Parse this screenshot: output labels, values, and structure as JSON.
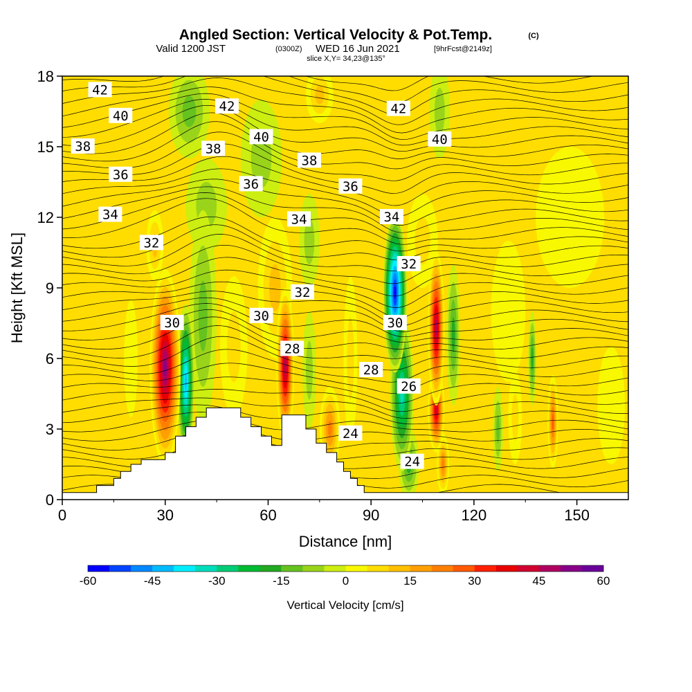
{
  "title": {
    "main": "Angled Section: Vertical Velocity & Pot.Temp.",
    "main_tag": "(C)",
    "valid_prefix": "Valid 1200 JST",
    "valid_zulu": "(0300Z)",
    "valid_date": "WED 16 Jun 2021",
    "forecast_tag": "[9hrFcst@2149z]",
    "slice": "slice X,Y= 34,23@135°"
  },
  "chart_data": {
    "type": "heatmap",
    "xlabel": "Distance [nm]",
    "ylabel": "Height [Kft MSL]",
    "xlim": [
      0,
      165
    ],
    "ylim": [
      0,
      18
    ],
    "x_ticks": [
      "0",
      "30",
      "60",
      "90",
      "120",
      "150"
    ],
    "x_tick_values": [
      0,
      30,
      60,
      90,
      120,
      150
    ],
    "y_ticks": [
      "0",
      "3",
      "6",
      "9",
      "12",
      "15",
      "18"
    ],
    "y_tick_values": [
      0,
      3,
      6,
      9,
      12,
      15,
      18
    ],
    "colorbar": {
      "label": "Vertical Velocity [cm/s]",
      "range": [
        -60,
        60
      ],
      "step": 5,
      "tick_labels": [
        "-60",
        "-45",
        "-30",
        "-15",
        "0",
        "15",
        "30",
        "45",
        "60"
      ],
      "tick_values": [
        -60,
        -45,
        -30,
        -15,
        0,
        15,
        30,
        45,
        60
      ],
      "colors": [
        "#0000ff",
        "#0044ff",
        "#0088ff",
        "#00bbff",
        "#00eeff",
        "#00ddbb",
        "#00cc77",
        "#00bb33",
        "#22aa22",
        "#66c21f",
        "#99d41a",
        "#ccee11",
        "#f8f800",
        "#ffdd00",
        "#ffc000",
        "#ffa000",
        "#ff8000",
        "#ff5a00",
        "#ff2000",
        "#e80000",
        "#d00030",
        "#b00060",
        "#880088",
        "#6a0099"
      ]
    },
    "terrain": [
      [
        0,
        0.3
      ],
      [
        10,
        0.3
      ],
      [
        10,
        0.6
      ],
      [
        15,
        0.6
      ],
      [
        15,
        0.9
      ],
      [
        17,
        0.9
      ],
      [
        17,
        1.2
      ],
      [
        20,
        1.2
      ],
      [
        20,
        1.5
      ],
      [
        23,
        1.5
      ],
      [
        23,
        1.7
      ],
      [
        30,
        1.7
      ],
      [
        30,
        2.0
      ],
      [
        33,
        2.0
      ],
      [
        33,
        2.7
      ],
      [
        36,
        2.7
      ],
      [
        36,
        3.1
      ],
      [
        39,
        3.1
      ],
      [
        39,
        3.5
      ],
      [
        42,
        3.5
      ],
      [
        42,
        3.9
      ],
      [
        52,
        3.9
      ],
      [
        52,
        3.5
      ],
      [
        55,
        3.5
      ],
      [
        55,
        3.1
      ],
      [
        58,
        3.1
      ],
      [
        58,
        2.7
      ],
      [
        61,
        2.7
      ],
      [
        61,
        2.3
      ],
      [
        64,
        2.3
      ],
      [
        64,
        3.6
      ],
      [
        71,
        3.6
      ],
      [
        71,
        3.0
      ],
      [
        74,
        3.0
      ],
      [
        74,
        2.4
      ],
      [
        77,
        2.4
      ],
      [
        77,
        2.0
      ],
      [
        80,
        2.0
      ],
      [
        80,
        1.6
      ],
      [
        82,
        1.6
      ],
      [
        82,
        1.2
      ],
      [
        84,
        1.2
      ],
      [
        84,
        0.9
      ],
      [
        86,
        0.9
      ],
      [
        86,
        0.6
      ],
      [
        88,
        0.6
      ],
      [
        88,
        0.3
      ],
      [
        165,
        0.3
      ]
    ],
    "vertical_velocity_cells": [
      {
        "x": 30,
        "y": 5.6,
        "rx": 4.5,
        "ry": 4.2,
        "w": 58
      },
      {
        "x": 36,
        "y": 5.0,
        "rx": 2.5,
        "ry": 3.3,
        "w": -45
      },
      {
        "x": 41,
        "y": 7.8,
        "rx": 4.0,
        "ry": 4.5,
        "w": -18
      },
      {
        "x": 27,
        "y": 10.8,
        "rx": 2.5,
        "ry": 1.5,
        "w": 15
      },
      {
        "x": 50,
        "y": 6.5,
        "rx": 4.0,
        "ry": 3.0,
        "w": 10
      },
      {
        "x": 65,
        "y": 5.7,
        "rx": 2.6,
        "ry": 3.3,
        "w": 52
      },
      {
        "x": 62,
        "y": 9.0,
        "rx": 5.0,
        "ry": 3.0,
        "w": 18
      },
      {
        "x": 72,
        "y": 5.5,
        "rx": 2.0,
        "ry": 2.5,
        "w": -12
      },
      {
        "x": 78,
        "y": 3.0,
        "rx": 3.0,
        "ry": 1.8,
        "w": 28
      },
      {
        "x": 84,
        "y": 6.0,
        "rx": 2.0,
        "ry": 3.5,
        "w": 10
      },
      {
        "x": 97,
        "y": 8.8,
        "rx": 3.5,
        "ry": 3.4,
        "w": -62
      },
      {
        "x": 99,
        "y": 4.5,
        "rx": 3.5,
        "ry": 3.3,
        "w": -35
      },
      {
        "x": 101,
        "y": 1.5,
        "rx": 3.0,
        "ry": 1.5,
        "w": -20
      },
      {
        "x": 109,
        "y": 7.3,
        "rx": 2.4,
        "ry": 3.3,
        "w": 50
      },
      {
        "x": 109,
        "y": 3.8,
        "rx": 2.4,
        "ry": 1.8,
        "w": 45
      },
      {
        "x": 111,
        "y": 1.5,
        "rx": 1.8,
        "ry": 1.3,
        "w": 28
      },
      {
        "x": 114,
        "y": 7.0,
        "rx": 2.0,
        "ry": 3.0,
        "w": -20
      },
      {
        "x": 127,
        "y": 3.0,
        "rx": 1.5,
        "ry": 1.8,
        "w": -15
      },
      {
        "x": 132,
        "y": 3.5,
        "rx": 2.0,
        "ry": 2.0,
        "w": 12
      },
      {
        "x": 137,
        "y": 6.0,
        "rx": 1.2,
        "ry": 2.0,
        "w": -20
      },
      {
        "x": 143,
        "y": 3.3,
        "rx": 1.5,
        "ry": 2.0,
        "w": 30
      },
      {
        "x": 20,
        "y": 6.0,
        "rx": 2.0,
        "ry": 2.5,
        "w": 8
      },
      {
        "x": 42,
        "y": 12.5,
        "rx": 6.0,
        "ry": 2.0,
        "w": -12
      },
      {
        "x": 37,
        "y": 16.5,
        "rx": 6.0,
        "ry": 2.0,
        "w": -15
      },
      {
        "x": 58,
        "y": 14.5,
        "rx": 6.0,
        "ry": 2.5,
        "w": -14
      },
      {
        "x": 75,
        "y": 17.2,
        "rx": 4.0,
        "ry": 1.2,
        "w": 18
      },
      {
        "x": 72,
        "y": 11.0,
        "rx": 3.0,
        "ry": 2.0,
        "w": -12
      },
      {
        "x": 105,
        "y": 11.0,
        "rx": 4.5,
        "ry": 2.0,
        "w": 10
      },
      {
        "x": 110,
        "y": 16.5,
        "rx": 3.0,
        "ry": 2.0,
        "w": -10
      },
      {
        "x": 130,
        "y": 8.0,
        "rx": 5.0,
        "ry": 3.0,
        "w": 6
      },
      {
        "x": 148,
        "y": 12.0,
        "rx": 10.0,
        "ry": 3.0,
        "w": 3
      },
      {
        "x": 160,
        "y": 4.0,
        "rx": 4.0,
        "ry": 2.5,
        "w": 6
      }
    ],
    "theta_labels": [
      {
        "text": "42",
        "x": 11,
        "y": 17.4
      },
      {
        "text": "40",
        "x": 17,
        "y": 16.3
      },
      {
        "text": "38",
        "x": 6,
        "y": 15.0
      },
      {
        "text": "36",
        "x": 17,
        "y": 13.8
      },
      {
        "text": "34",
        "x": 14,
        "y": 12.1
      },
      {
        "text": "32",
        "x": 26,
        "y": 10.9
      },
      {
        "text": "30",
        "x": 32,
        "y": 7.5
      },
      {
        "text": "42",
        "x": 48,
        "y": 16.7
      },
      {
        "text": "40",
        "x": 58,
        "y": 15.4
      },
      {
        "text": "38",
        "x": 44,
        "y": 14.9
      },
      {
        "text": "36",
        "x": 55,
        "y": 13.4
      },
      {
        "text": "38",
        "x": 72,
        "y": 14.4
      },
      {
        "text": "34",
        "x": 69,
        "y": 11.9
      },
      {
        "text": "32",
        "x": 70,
        "y": 8.8
      },
      {
        "text": "30",
        "x": 58,
        "y": 7.8
      },
      {
        "text": "28",
        "x": 67,
        "y": 6.4
      },
      {
        "text": "36",
        "x": 84,
        "y": 13.3
      },
      {
        "text": "34",
        "x": 96,
        "y": 12.0
      },
      {
        "text": "42",
        "x": 98,
        "y": 16.6
      },
      {
        "text": "40",
        "x": 110,
        "y": 15.3
      },
      {
        "text": "32",
        "x": 101,
        "y": 10.0
      },
      {
        "text": "30",
        "x": 97,
        "y": 7.5
      },
      {
        "text": "28",
        "x": 90,
        "y": 5.5
      },
      {
        "text": "26",
        "x": 101,
        "y": 4.8
      },
      {
        "text": "24",
        "x": 84,
        "y": 2.8
      },
      {
        "text": "24",
        "x": 102,
        "y": 1.6
      }
    ]
  }
}
